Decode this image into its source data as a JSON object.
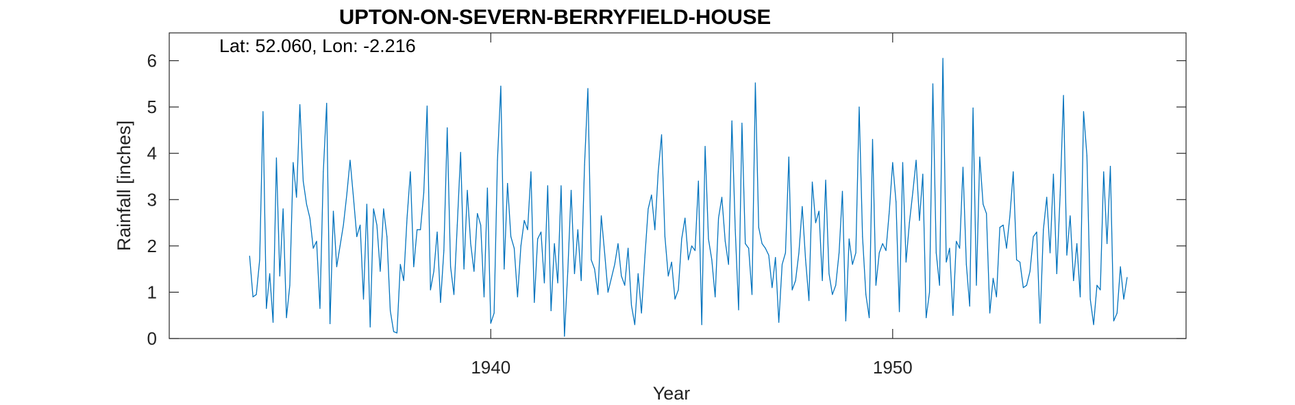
{
  "chart_data": {
    "type": "line",
    "title": "UPTON-ON-SEVERN-BERRYFIELD-HOUSE",
    "annotation": "Lat: 52.060, Lon: -2.216",
    "xlabel": "Year",
    "ylabel": "Rainfall [inches]",
    "xlim": [
      1932.0,
      1957.3
    ],
    "ylim": [
      0,
      6.6
    ],
    "xticks": [
      1940,
      1950
    ],
    "yticks": [
      0,
      1,
      2,
      3,
      4,
      5,
      6
    ],
    "grid": false,
    "line_color": "#0072BD",
    "series": [
      {
        "x_start": 1934.0,
        "x_step": 0.0833333,
        "values": [
          1.78,
          0.9,
          0.95,
          1.7,
          4.9,
          0.65,
          1.4,
          0.35,
          3.9,
          1.35,
          2.8,
          0.45,
          1.15,
          3.8,
          3.05,
          5.05,
          3.4,
          2.9,
          2.6,
          1.95,
          2.1,
          0.65,
          3.6,
          5.08,
          0.32,
          2.75,
          1.55,
          2.0,
          2.45,
          3.1,
          3.85,
          3.05,
          2.2,
          2.45,
          0.85,
          2.9,
          0.25,
          2.8,
          2.45,
          1.45,
          2.8,
          2.2,
          0.6,
          0.15,
          0.12,
          1.6,
          1.25,
          2.6,
          3.6,
          1.55,
          2.35,
          2.35,
          3.15,
          5.02,
          1.05,
          1.45,
          2.3,
          0.78,
          1.9,
          4.55,
          1.55,
          0.95,
          2.45,
          4.02,
          1.5,
          3.2,
          2.05,
          1.45,
          2.7,
          2.45,
          0.9,
          3.25,
          0.33,
          0.55,
          3.85,
          5.45,
          1.5,
          3.35,
          2.2,
          1.95,
          0.9,
          2.0,
          2.55,
          2.35,
          3.6,
          0.78,
          2.15,
          2.3,
          1.2,
          3.3,
          0.6,
          2.05,
          1.2,
          3.3,
          0.05,
          1.45,
          3.2,
          1.4,
          2.35,
          1.25,
          3.75,
          5.4,
          1.7,
          1.5,
          0.95,
          2.65,
          1.85,
          1.0,
          1.3,
          1.6,
          2.05,
          1.35,
          1.15,
          1.95,
          0.72,
          0.3,
          1.4,
          0.55,
          1.75,
          2.8,
          3.1,
          2.35,
          3.6,
          4.4,
          2.2,
          1.35,
          1.65,
          0.85,
          1.05,
          2.15,
          2.6,
          1.7,
          2.0,
          1.9,
          3.4,
          0.3,
          4.15,
          2.15,
          1.7,
          0.9,
          2.6,
          3.05,
          2.1,
          1.6,
          4.7,
          2.35,
          0.62,
          4.65,
          2.05,
          1.95,
          0.95,
          5.52,
          2.4,
          2.05,
          1.95,
          1.8,
          1.1,
          1.75,
          0.35,
          1.6,
          1.85,
          3.92,
          1.05,
          1.25,
          1.85,
          2.85,
          1.7,
          0.82,
          3.38,
          2.5,
          2.75,
          1.25,
          3.42,
          1.4,
          0.95,
          1.15,
          1.85,
          3.18,
          0.38,
          2.15,
          1.6,
          1.85,
          5.0,
          2.2,
          0.95,
          0.45,
          4.3,
          1.15,
          1.85,
          2.05,
          1.9,
          2.75,
          3.8,
          2.95,
          0.58,
          3.8,
          1.65,
          2.5,
          3.15,
          3.85,
          2.55,
          3.55,
          0.45,
          1.0,
          5.5,
          1.85,
          1.15,
          6.05,
          1.65,
          1.95,
          0.5,
          2.1,
          1.95,
          3.7,
          1.6,
          0.7,
          4.98,
          1.15,
          3.92,
          2.9,
          2.7,
          0.55,
          1.3,
          0.9,
          2.4,
          2.45,
          1.95,
          2.65,
          3.6,
          1.7,
          1.65,
          1.1,
          1.15,
          1.45,
          2.2,
          2.3,
          0.33,
          2.35,
          3.05,
          1.85,
          3.55,
          1.4,
          3.1,
          5.25,
          1.8,
          2.65,
          1.25,
          2.05,
          0.9,
          4.9,
          3.95,
          0.85,
          0.3,
          1.15,
          1.05,
          3.6,
          2.05,
          3.72,
          0.38,
          0.55,
          1.55,
          0.85,
          1.32
        ]
      }
    ]
  }
}
